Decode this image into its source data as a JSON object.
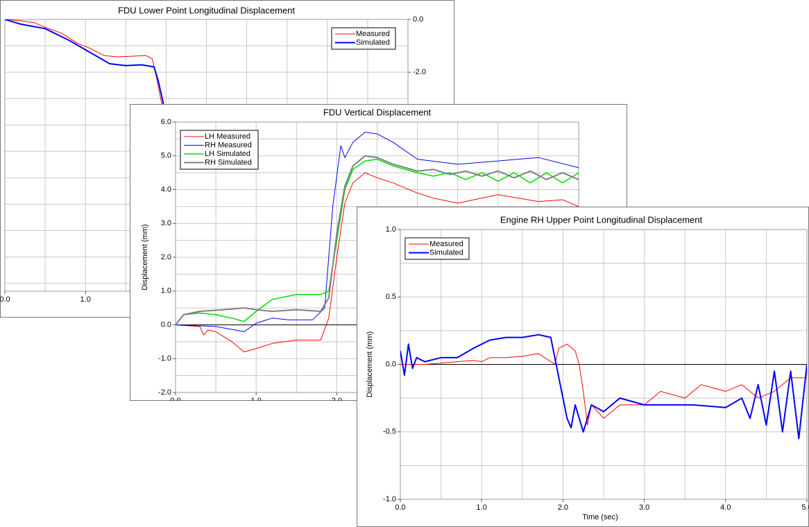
{
  "chart_data": [
    {
      "type": "line",
      "title": "FDU Lower Point Longitudinal Displacement",
      "xlim": [
        0,
        5
      ],
      "ylim": [
        -10.3,
        0
      ],
      "y_axis_side": "right",
      "xticks": [
        {
          "value": 0,
          "label": "0.0"
        },
        {
          "value": 1,
          "label": "1.0"
        }
      ],
      "yticks": [
        {
          "value": 0,
          "label": "0.0"
        },
        {
          "value": -2,
          "label": "-2.0"
        }
      ],
      "xgrid": [
        0.5,
        1,
        1.5,
        2,
        2.5,
        3,
        3.5,
        4,
        4.5
      ],
      "ygrid": [
        -1,
        -2,
        -3,
        -4,
        -5,
        -6,
        -7,
        -8,
        -9,
        -10
      ],
      "legend": "upper right",
      "series": [
        {
          "name": "Measured",
          "color": "#ff0000",
          "line_width": 1,
          "x": [
            0,
            0.2,
            0.37,
            0.5,
            0.71,
            0.9,
            1.06,
            1.23,
            1.4,
            1.55,
            1.75,
            1.83,
            1.88,
            1.94,
            2.0
          ],
          "values": [
            0,
            -0.05,
            -0.13,
            -0.3,
            -0.53,
            -0.9,
            -1.1,
            -1.37,
            -1.42,
            -1.4,
            -1.37,
            -1.5,
            -2.2,
            -3.1,
            -4.0
          ]
        },
        {
          "name": "Simulated",
          "color": "#0000ff",
          "line_width": 2,
          "x": [
            0,
            0.2,
            0.5,
            0.8,
            1.0,
            1.2,
            1.3,
            1.5,
            1.7,
            1.85,
            1.9,
            1.96,
            2.0
          ],
          "values": [
            0,
            -0.18,
            -0.35,
            -0.8,
            -1.15,
            -1.5,
            -1.68,
            -1.75,
            -1.72,
            -1.8,
            -2.3,
            -3.1,
            -4.0
          ]
        }
      ]
    },
    {
      "type": "line",
      "title": "FDU Vertical Displacement",
      "y_label": "Displacement (mm)",
      "xlim": [
        0,
        5
      ],
      "ylim": [
        -2,
        6
      ],
      "y_axis_side": "left",
      "zero_line": true,
      "xticks": [
        {
          "value": 0,
          "label": "0.0"
        },
        {
          "value": 1,
          "label": "1.0"
        },
        {
          "value": 2,
          "label": "2.0"
        }
      ],
      "yticks": [
        {
          "value": 6,
          "label": "6.0"
        },
        {
          "value": 5,
          "label": "5.0"
        },
        {
          "value": 4,
          "label": "4.0"
        },
        {
          "value": 3,
          "label": "3.0"
        },
        {
          "value": 2,
          "label": "2.0"
        },
        {
          "value": 1,
          "label": "1.0"
        },
        {
          "value": 0,
          "label": "0.0"
        },
        {
          "value": -1,
          "label": "-1.0"
        },
        {
          "value": -2,
          "label": "-2.0"
        }
      ],
      "xgrid": [
        0.5,
        1,
        1.5,
        2,
        2.5,
        3,
        3.5,
        4,
        4.5
      ],
      "ygrid": [
        -1.5,
        -1,
        -0.5,
        0.5,
        1,
        1.5,
        2,
        2.5,
        3,
        3.5,
        4,
        4.5,
        5,
        5.5
      ],
      "legend": "upper left",
      "series": [
        {
          "name": "LH Measured",
          "color": "#ff0000",
          "line_width": 1,
          "x": [
            0,
            0.3,
            0.35,
            0.4,
            0.5,
            0.7,
            0.85,
            1.0,
            1.2,
            1.5,
            1.8,
            1.9,
            2.0,
            2.1,
            2.2,
            2.35,
            2.5,
            2.7,
            3.0,
            3.2,
            3.5,
            4.0,
            4.5,
            4.8,
            5.0
          ],
          "values": [
            0,
            -0.05,
            -0.3,
            -0.15,
            -0.2,
            -0.5,
            -0.8,
            -0.7,
            -0.55,
            -0.45,
            -0.45,
            0.2,
            2.0,
            3.6,
            4.2,
            4.5,
            4.35,
            4.2,
            3.9,
            3.75,
            3.6,
            3.85,
            3.65,
            3.7,
            3.5
          ]
        },
        {
          "name": "RH Measured",
          "color": "#0000ff",
          "line_width": 1,
          "x": [
            0,
            0.5,
            0.85,
            1.0,
            1.2,
            1.4,
            1.7,
            1.85,
            1.95,
            2.05,
            2.1,
            2.2,
            2.35,
            2.5,
            2.7,
            3.0,
            3.5,
            4.0,
            4.5,
            5.0
          ],
          "values": [
            0,
            -0.05,
            -0.2,
            0.05,
            0.2,
            0.15,
            0.15,
            0.5,
            3.5,
            5.3,
            4.95,
            5.4,
            5.7,
            5.65,
            5.4,
            4.9,
            4.75,
            4.85,
            4.95,
            4.65
          ]
        },
        {
          "name": "LH Simulated",
          "color": "#00dd00",
          "line_width": 1.5,
          "x": [
            0,
            0.1,
            0.3,
            0.5,
            0.7,
            0.85,
            1.0,
            1.2,
            1.5,
            1.8,
            1.9,
            2.0,
            2.1,
            2.2,
            2.35,
            2.5,
            2.7,
            3.0,
            3.2,
            3.4,
            3.6,
            3.8,
            4.0,
            4.2,
            4.4,
            4.6,
            4.8,
            5.0
          ],
          "values": [
            0,
            0.3,
            0.35,
            0.3,
            0.2,
            0.1,
            0.4,
            0.75,
            0.9,
            0.9,
            1.0,
            2.5,
            4.0,
            4.6,
            4.85,
            4.9,
            4.7,
            4.5,
            4.4,
            4.5,
            4.3,
            4.5,
            4.25,
            4.5,
            4.2,
            4.5,
            4.2,
            4.5
          ]
        },
        {
          "name": "RH Simulated",
          "color": "#808080",
          "line_width": 2,
          "x": [
            0,
            0.1,
            0.3,
            0.6,
            0.85,
            1.0,
            1.2,
            1.5,
            1.8,
            1.9,
            2.0,
            2.1,
            2.2,
            2.35,
            2.5,
            2.7,
            3.0,
            3.2,
            3.4,
            3.6,
            3.8,
            4.0,
            4.2,
            4.4,
            4.6,
            4.8,
            5.0
          ],
          "values": [
            0,
            0.3,
            0.4,
            0.45,
            0.5,
            0.45,
            0.4,
            0.45,
            0.4,
            0.8,
            2.7,
            4.1,
            4.7,
            5.0,
            4.95,
            4.75,
            4.55,
            4.6,
            4.45,
            4.55,
            4.4,
            4.55,
            4.35,
            4.55,
            4.3,
            4.5,
            4.3
          ]
        }
      ]
    },
    {
      "type": "line",
      "title": "Engine RH Upper Point Longitudinal Displacement",
      "x_label": "Time (sec)",
      "y_label": "Displacement (mm)",
      "xlim": [
        0,
        5
      ],
      "ylim": [
        -1,
        1
      ],
      "y_axis_side": "left",
      "zero_line": true,
      "xticks": [
        {
          "value": 0,
          "label": "0.0"
        },
        {
          "value": 1,
          "label": "1.0"
        },
        {
          "value": 2,
          "label": "2.0"
        },
        {
          "value": 3,
          "label": "3.0"
        },
        {
          "value": 4,
          "label": "4.0"
        },
        {
          "value": 5,
          "label": "5.0"
        }
      ],
      "yticks": [
        {
          "value": 1,
          "label": "1.0"
        },
        0.5,
        {
          "value": 0,
          "label": "0.0"
        },
        -0.5,
        {
          "value": -1,
          "label": "-1.0"
        }
      ],
      "xgrid": [
        0.5,
        1,
        1.5,
        2,
        2.5,
        3,
        3.5,
        4,
        4.5
      ],
      "ygrid": [
        -0.75,
        -0.5,
        -0.25,
        0.25,
        0.5,
        0.75
      ],
      "legend": "upper left",
      "series": [
        {
          "name": "Measured",
          "color": "#ff0000",
          "line_width": 1,
          "x": [
            0,
            0.3,
            0.5,
            0.7,
            0.9,
            1.0,
            1.1,
            1.3,
            1.5,
            1.7,
            1.8,
            1.9,
            1.95,
            2.05,
            2.15,
            2.2,
            2.25,
            2.3,
            2.35,
            2.5,
            2.7,
            3.0,
            3.2,
            3.5,
            3.7,
            4.0,
            4.2,
            4.4,
            4.6,
            4.8,
            5.0
          ],
          "values": [
            0,
            0,
            0.01,
            0.02,
            0.03,
            0.02,
            0.05,
            0.05,
            0.06,
            0.08,
            0.04,
            0,
            0.12,
            0.15,
            0.1,
            0,
            -0.2,
            -0.45,
            -0.3,
            -0.4,
            -0.3,
            -0.3,
            -0.2,
            -0.25,
            -0.15,
            -0.2,
            -0.15,
            -0.25,
            -0.2,
            -0.1,
            -0.1
          ]
        },
        {
          "name": "Simulated",
          "color": "#0000ff",
          "line_width": 2,
          "x": [
            0,
            0.05,
            0.1,
            0.15,
            0.2,
            0.3,
            0.5,
            0.7,
            0.9,
            1.1,
            1.3,
            1.5,
            1.7,
            1.85,
            1.95,
            2.05,
            2.1,
            2.15,
            2.25,
            2.35,
            2.5,
            2.7,
            3.0,
            3.3,
            3.6,
            4.0,
            4.2,
            4.3,
            4.4,
            4.5,
            4.6,
            4.7,
            4.8,
            4.9,
            5.0
          ],
          "values": [
            0.1,
            -0.08,
            0.15,
            -0.03,
            0.05,
            0.02,
            0.05,
            0.05,
            0.12,
            0.18,
            0.2,
            0.2,
            0.22,
            0.2,
            -0.1,
            -0.4,
            -0.47,
            -0.3,
            -0.5,
            -0.3,
            -0.35,
            -0.25,
            -0.3,
            -0.3,
            -0.3,
            -0.32,
            -0.25,
            -0.4,
            -0.15,
            -0.45,
            -0.05,
            -0.5,
            -0.05,
            -0.55,
            0
          ]
        }
      ]
    }
  ]
}
